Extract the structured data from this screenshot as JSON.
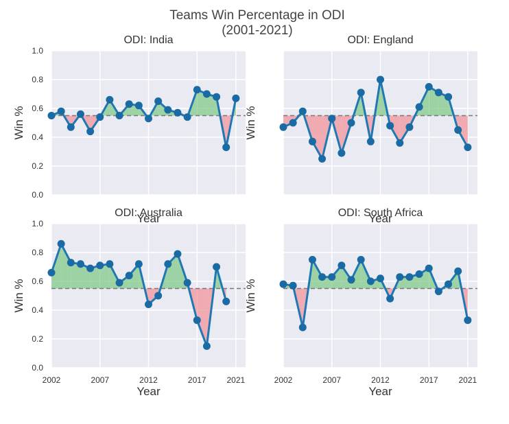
{
  "figure": {
    "title_line1": "Teams Win Percentage in ODI",
    "title_line2": "(2001-2021)"
  },
  "colors": {
    "panel_bg": "#eaeaf2",
    "grid": "#ffffff",
    "line": "#1f77b4",
    "marker": "#1a6aa3",
    "above_fill": "#8fcf96",
    "below_fill": "#f0a0a6",
    "baseline": "#777777",
    "text": "#333333"
  },
  "chart_data": [
    {
      "type": "line",
      "title": "ODI: India",
      "xlabel": "Year",
      "ylabel": "Win %",
      "baseline": 0.55,
      "xlim": [
        2002,
        2022
      ],
      "ylim": [
        0,
        1.0
      ],
      "show_x_ticks": false,
      "show_y_ticks": true,
      "x": [
        2002,
        2003,
        2004,
        2005,
        2006,
        2007,
        2008,
        2009,
        2010,
        2011,
        2012,
        2013,
        2014,
        2015,
        2016,
        2017,
        2018,
        2019,
        2020,
        2021
      ],
      "values": [
        0.55,
        0.58,
        0.47,
        0.56,
        0.44,
        0.54,
        0.66,
        0.55,
        0.63,
        0.62,
        0.53,
        0.65,
        0.59,
        0.57,
        0.54,
        0.73,
        0.7,
        0.68,
        0.33,
        0.67
      ]
    },
    {
      "type": "line",
      "title": "ODI: England",
      "xlabel": "Year",
      "ylabel": "Win %",
      "baseline": 0.55,
      "xlim": [
        2002,
        2022
      ],
      "ylim": [
        0,
        1.0
      ],
      "show_x_ticks": false,
      "show_y_ticks": false,
      "x": [
        2002,
        2003,
        2004,
        2005,
        2006,
        2007,
        2008,
        2009,
        2010,
        2011,
        2012,
        2013,
        2014,
        2015,
        2016,
        2017,
        2018,
        2019,
        2020,
        2021
      ],
      "values": [
        0.47,
        0.5,
        0.58,
        0.37,
        0.25,
        0.53,
        0.29,
        0.5,
        0.71,
        0.37,
        0.8,
        0.48,
        0.36,
        0.47,
        0.61,
        0.75,
        0.71,
        0.68,
        0.45,
        0.33
      ]
    },
    {
      "type": "line",
      "title": "ODI: Australia",
      "xlabel": "Year",
      "ylabel": "Win %",
      "baseline": 0.55,
      "xlim": [
        2002,
        2022
      ],
      "ylim": [
        0,
        1.0
      ],
      "show_x_ticks": true,
      "show_y_ticks": true,
      "x": [
        2002,
        2003,
        2004,
        2005,
        2006,
        2007,
        2008,
        2009,
        2010,
        2011,
        2012,
        2013,
        2014,
        2015,
        2016,
        2017,
        2018,
        2019,
        2020,
        2021
      ],
      "values": [
        0.66,
        0.86,
        0.73,
        0.72,
        0.69,
        0.71,
        0.72,
        0.59,
        0.64,
        0.72,
        0.44,
        0.5,
        0.72,
        0.79,
        0.59,
        0.33,
        0.15,
        0.7,
        0.46,
        null
      ]
    },
    {
      "type": "line",
      "title": "ODI: South Africa",
      "xlabel": "Year",
      "ylabel": "Win %",
      "baseline": 0.55,
      "xlim": [
        2002,
        2022
      ],
      "ylim": [
        0,
        1.0
      ],
      "show_x_ticks": true,
      "show_y_ticks": false,
      "x": [
        2002,
        2003,
        2004,
        2005,
        2006,
        2007,
        2008,
        2009,
        2010,
        2011,
        2012,
        2013,
        2014,
        2015,
        2016,
        2017,
        2018,
        2019,
        2020,
        2021
      ],
      "values": [
        0.58,
        0.57,
        0.28,
        0.75,
        0.63,
        0.63,
        0.71,
        0.61,
        0.75,
        0.6,
        0.62,
        0.48,
        0.63,
        0.63,
        0.65,
        0.69,
        0.53,
        0.58,
        0.67,
        0.33
      ]
    }
  ],
  "axes": {
    "y_ticks": [
      "0.0",
      "0.2",
      "0.4",
      "0.6",
      "0.8",
      "1.0"
    ],
    "y_tick_values": [
      0,
      0.2,
      0.4,
      0.6,
      0.8,
      1.0
    ],
    "x_ticks": [
      "2002",
      "2007",
      "2012",
      "2017",
      "2021"
    ],
    "x_tick_values": [
      2002,
      2007,
      2012,
      2017,
      2021
    ]
  }
}
